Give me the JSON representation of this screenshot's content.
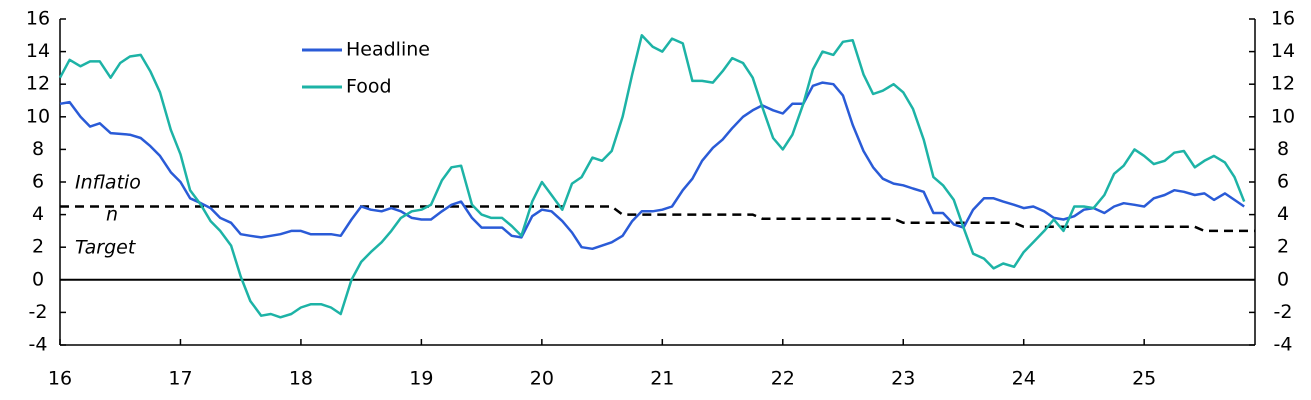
{
  "chart_data": {
    "type": "line",
    "x": [
      16,
      16.08,
      16.17,
      16.25,
      16.33,
      16.42,
      16.5,
      16.58,
      16.67,
      16.75,
      16.83,
      16.92,
      17,
      17.08,
      17.17,
      17.25,
      17.33,
      17.42,
      17.5,
      17.58,
      17.67,
      17.75,
      17.83,
      17.92,
      18,
      18.08,
      18.17,
      18.25,
      18.33,
      18.42,
      18.5,
      18.58,
      18.67,
      18.75,
      18.83,
      18.92,
      19,
      19.08,
      19.17,
      19.25,
      19.33,
      19.42,
      19.5,
      19.58,
      19.67,
      19.75,
      19.83,
      19.92,
      20,
      20.08,
      20.17,
      20.25,
      20.33,
      20.42,
      20.5,
      20.58,
      20.67,
      20.75,
      20.83,
      20.92,
      21,
      21.08,
      21.17,
      21.25,
      21.33,
      21.42,
      21.5,
      21.58,
      21.67,
      21.75,
      21.83,
      21.92,
      22,
      22.08,
      22.17,
      22.25,
      22.33,
      22.42,
      22.5,
      22.58,
      22.67,
      22.75,
      22.83,
      22.92,
      23,
      23.08,
      23.17,
      23.25,
      23.33,
      23.42,
      23.5,
      23.58,
      23.67,
      23.75,
      23.83,
      23.92,
      24,
      24.08,
      24.17,
      24.25,
      24.33,
      24.42,
      24.5,
      24.58,
      24.67,
      24.75,
      24.83,
      24.92,
      25,
      25.08,
      25.17,
      25.25,
      25.33,
      25.42,
      25.5,
      25.58,
      25.67,
      25.75,
      25.83
    ],
    "series": [
      {
        "name": "Headline",
        "color": "#2a5bd7",
        "values": [
          10.8,
          10.9,
          10.0,
          9.4,
          9.6,
          9.0,
          8.95,
          8.9,
          8.7,
          8.2,
          7.6,
          6.6,
          6.0,
          5.0,
          4.7,
          4.4,
          3.8,
          3.5,
          2.8,
          2.7,
          2.6,
          2.7,
          2.8,
          3.0,
          3.0,
          2.8,
          2.8,
          2.8,
          2.7,
          3.7,
          4.5,
          4.3,
          4.2,
          4.4,
          4.2,
          3.8,
          3.7,
          3.7,
          4.2,
          4.6,
          4.8,
          3.8,
          3.2,
          3.2,
          3.2,
          2.7,
          2.6,
          3.9,
          4.3,
          4.2,
          3.6,
          2.9,
          2.0,
          1.9,
          2.1,
          2.3,
          2.7,
          3.6,
          4.2,
          4.2,
          4.3,
          4.5,
          5.5,
          6.2,
          7.3,
          8.1,
          8.6,
          9.3,
          10.0,
          10.4,
          10.7,
          10.4,
          10.2,
          10.8,
          10.8,
          11.9,
          12.1,
          12.0,
          11.3,
          9.5,
          7.9,
          6.9,
          6.2,
          5.9,
          5.8,
          5.6,
          5.4,
          4.1,
          4.1,
          3.4,
          3.2,
          4.3,
          5.0,
          5.0,
          4.8,
          4.6,
          4.4,
          4.5,
          4.2,
          3.8,
          3.7,
          3.9,
          4.3,
          4.4,
          4.1,
          4.5,
          4.7,
          4.6,
          4.5,
          5.0,
          5.2,
          5.5,
          5.4,
          5.2,
          5.3,
          4.9,
          5.3,
          4.9,
          4.5
        ]
      },
      {
        "name": "Food",
        "color": "#1db3a6",
        "values": [
          12.4,
          13.5,
          13.1,
          13.4,
          13.4,
          12.4,
          13.3,
          13.7,
          13.8,
          12.8,
          11.5,
          9.2,
          7.7,
          5.5,
          4.6,
          3.6,
          3.0,
          2.1,
          0.2,
          -1.3,
          -2.2,
          -2.1,
          -2.3,
          -2.1,
          -1.7,
          -1.5,
          -1.5,
          -1.7,
          -2.1,
          0.0,
          1.1,
          1.7,
          2.3,
          3.0,
          3.8,
          4.2,
          4.3,
          4.6,
          6.1,
          6.9,
          7.0,
          4.6,
          4.0,
          3.8,
          3.8,
          3.3,
          2.7,
          4.8,
          6.0,
          5.2,
          4.3,
          5.9,
          6.3,
          7.5,
          7.3,
          7.9,
          10.0,
          12.6,
          15.0,
          14.3,
          14.0,
          14.8,
          14.5,
          12.2,
          12.2,
          12.1,
          12.8,
          13.6,
          13.3,
          12.4,
          10.6,
          8.7,
          8.0,
          8.9,
          10.8,
          12.9,
          14.0,
          13.8,
          14.6,
          14.7,
          12.6,
          11.4,
          11.6,
          12.0,
          11.5,
          10.5,
          8.6,
          6.3,
          5.8,
          4.9,
          3.2,
          1.6,
          1.3,
          0.7,
          1.0,
          0.8,
          1.7,
          2.3,
          3.0,
          3.7,
          3.0,
          4.5,
          4.5,
          4.4,
          5.2,
          6.5,
          7.0,
          8.0,
          7.6,
          7.1,
          7.3,
          7.8,
          7.9,
          6.9,
          7.3,
          7.6,
          7.2,
          6.3,
          4.8
        ]
      }
    ],
    "target": {
      "annotation": [
        "Inflatio",
        "n",
        "Target"
      ],
      "color": "#000000",
      "x": [
        16,
        20.58,
        20.67,
        21.75,
        21.83,
        22.92,
        23.0,
        23.92,
        24.0,
        25.42,
        25.5,
        25.92
      ],
      "values": [
        4.5,
        4.5,
        4.0,
        4.0,
        3.75,
        3.75,
        3.5,
        3.5,
        3.25,
        3.25,
        3.0,
        3.0
      ]
    },
    "xlim": [
      16,
      25.92
    ],
    "xticks": [
      16,
      17,
      18,
      19,
      20,
      21,
      22,
      23,
      24,
      25
    ],
    "ylim": [
      -4,
      16
    ],
    "yticks": [
      -4,
      -2,
      0,
      2,
      4,
      6,
      8,
      10,
      12,
      14,
      16
    ],
    "y2lim": [
      -4,
      16
    ],
    "y2ticks": [
      -4,
      -2,
      0,
      2,
      4,
      6,
      8,
      10,
      12,
      14,
      16
    ],
    "legend": "top-left"
  }
}
